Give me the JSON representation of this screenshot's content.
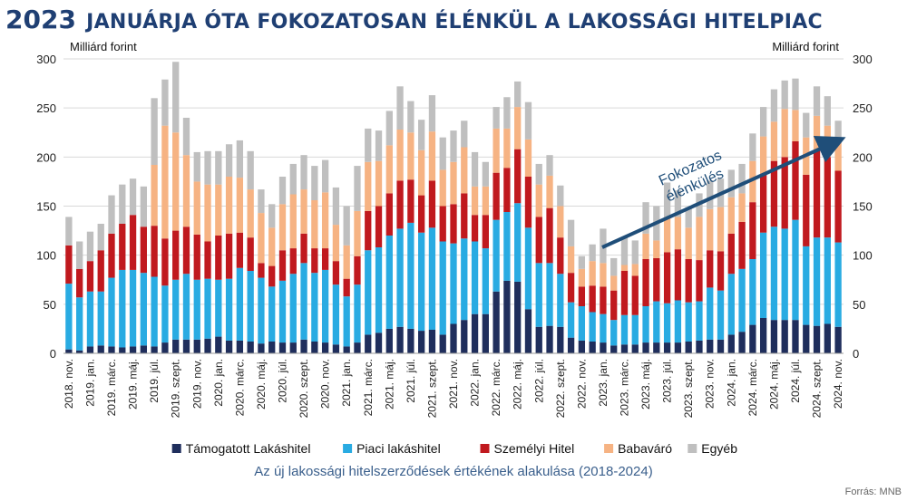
{
  "title": {
    "year": "2023",
    "rest": "JANUÁRJA ÓTA FOKOZATOSAN ÉLÉNKÜL A LAKOSSÁGI HITELPIAC"
  },
  "subtitle": "Az új lakossági hitelszerződések értékének alakulása (2018-2024)",
  "source": "Forrás: MNB",
  "annotation": [
    "Fokozatos",
    "élénkülés"
  ],
  "chart_data": {
    "type": "bar",
    "stacked": true,
    "ylabel_left": "Milliárd forint",
    "ylabel_right": "Milliárd forint",
    "ylim": [
      0,
      300
    ],
    "yticks": [
      0,
      50,
      100,
      150,
      200,
      250,
      300
    ],
    "grid": "horizontal",
    "legend_position": "bottom",
    "categories": [
      "2018. nov.",
      "2018. dec.",
      "2019. jan.",
      "2019. febr.",
      "2019. márc.",
      "2019. ápr.",
      "2019. máj.",
      "2019. jún.",
      "2019. júl.",
      "2019. aug.",
      "2019. szept.",
      "2019. okt.",
      "2019. nov.",
      "2019. dec.",
      "2020. jan.",
      "2020. febr.",
      "2020. márc.",
      "2020. ápr.",
      "2020. máj.",
      "2020. jún.",
      "2020. júl.",
      "2020. aug.",
      "2020. szept.",
      "2020. okt.",
      "2020. nov.",
      "2020. dec.",
      "2021. jan.",
      "2021. febr.",
      "2021. márc.",
      "2021. ápr.",
      "2021. máj.",
      "2021. jún.",
      "2021. júl.",
      "2021. aug.",
      "2021. szept.",
      "2021. okt.",
      "2021. nov.",
      "2021. dec.",
      "2022. jan.",
      "2022. febr.",
      "2022. márc.",
      "2022. ápr.",
      "2022. máj.",
      "2022. jún.",
      "2022. júl.",
      "2022. aug.",
      "2022. szept.",
      "2022. okt.",
      "2022. nov.",
      "2022. dec.",
      "2023. jan.",
      "2023. febr.",
      "2023. márc.",
      "2023. ápr.",
      "2023. máj.",
      "2023. jún.",
      "2023. júl.",
      "2023. aug.",
      "2023. szept.",
      "2023. okt.",
      "2023. nov.",
      "2023. dec.",
      "2024. jan.",
      "2024. febr.",
      "2024. márc.",
      "2024. ápr.",
      "2024. máj.",
      "2024. jún.",
      "2024. júl.",
      "2024. aug.",
      "2024. szept.",
      "2024. okt.",
      "2024. nov."
    ],
    "tick_labels": [
      "2018. nov.",
      "2019. jan.",
      "2019. márc.",
      "2019. máj.",
      "2019. júl.",
      "2019. szept.",
      "2019. nov.",
      "2020. jan.",
      "2020. márc.",
      "2020. máj.",
      "2020. júl.",
      "2020. szept.",
      "2020. nov.",
      "2021. jan.",
      "2021. márc.",
      "2021. máj.",
      "2021. júl.",
      "2021. szept.",
      "2021. nov.",
      "2022. jan.",
      "2022. márc.",
      "2022. máj.",
      "2022. júl.",
      "2022. szept.",
      "2022. nov.",
      "2023. jan.",
      "2023. márc.",
      "2023. máj.",
      "2023. júl.",
      "2023. szept.",
      "2023. nov.",
      "2024. jan.",
      "2024. márc.",
      "2024. máj.",
      "2024. júl.",
      "2024. szept.",
      "2024. nov."
    ],
    "series": [
      {
        "name": "Támogatott Lakáshitel",
        "color": "#1f2e5c",
        "values": [
          4,
          3,
          7,
          8,
          7,
          6,
          7,
          8,
          7,
          11,
          14,
          14,
          14,
          15,
          17,
          13,
          13,
          12,
          10,
          12,
          11,
          11,
          14,
          12,
          11,
          9,
          7,
          11,
          19,
          21,
          25,
          27,
          25,
          23,
          24,
          19,
          30,
          34,
          40,
          40,
          63,
          74,
          73,
          45,
          27,
          28,
          27,
          16,
          13,
          12,
          11,
          8,
          9,
          9,
          11,
          11,
          11,
          11,
          12,
          13,
          14,
          14,
          19,
          22,
          29,
          36,
          34,
          34,
          34,
          29,
          28,
          30,
          27
        ]
      },
      {
        "name": "Piaci lakáshitel",
        "color": "#29abe2",
        "values": [
          67,
          54,
          56,
          55,
          70,
          79,
          78,
          74,
          71,
          58,
          61,
          67,
          61,
          61,
          58,
          63,
          74,
          72,
          67,
          56,
          63,
          70,
          78,
          70,
          74,
          61,
          51,
          59,
          86,
          87,
          95,
          100,
          108,
          100,
          104,
          95,
          82,
          83,
          74,
          67,
          73,
          70,
          80,
          83,
          65,
          64,
          54,
          36,
          35,
          30,
          29,
          26,
          30,
          30,
          37,
          42,
          40,
          43,
          40,
          40,
          53,
          50,
          62,
          64,
          67,
          87,
          95,
          93,
          102,
          80,
          90,
          88,
          86
        ]
      },
      {
        "name": "Személyi Hitel",
        "color": "#c0191e",
        "values": [
          39,
          29,
          31,
          42,
          45,
          47,
          56,
          47,
          52,
          48,
          50,
          48,
          46,
          38,
          45,
          46,
          36,
          34,
          15,
          21,
          31,
          26,
          30,
          25,
          22,
          24,
          18,
          29,
          40,
          42,
          43,
          49,
          44,
          38,
          48,
          36,
          40,
          46,
          27,
          34,
          48,
          45,
          55,
          52,
          47,
          56,
          37,
          30,
          20,
          27,
          28,
          30,
          45,
          40,
          48,
          44,
          52,
          52,
          44,
          42,
          38,
          40,
          41,
          48,
          58,
          60,
          67,
          73,
          80,
          73,
          89,
          82,
          73
        ]
      },
      {
        "name": "Babaváró",
        "color": "#f6b383",
        "values": [
          0,
          0,
          0,
          0,
          0,
          0,
          0,
          0,
          62,
          115,
          100,
          73,
          54,
          58,
          52,
          58,
          56,
          49,
          51,
          39,
          47,
          55,
          45,
          49,
          57,
          37,
          34,
          46,
          50,
          46,
          49,
          52,
          48,
          46,
          50,
          37,
          43,
          47,
          29,
          29,
          45,
          40,
          43,
          38,
          33,
          33,
          32,
          27,
          18,
          25,
          24,
          15,
          6,
          12,
          26,
          18,
          36,
          33,
          32,
          44,
          42,
          45,
          37,
          29,
          42,
          38,
          40,
          49,
          32,
          38,
          35,
          32,
          30
        ]
      },
      {
        "name": "Egyéb",
        "color": "#bfbfbf",
        "values": [
          29,
          28,
          30,
          27,
          39,
          40,
          37,
          41,
          68,
          47,
          72,
          38,
          30,
          34,
          34,
          33,
          38,
          39,
          24,
          24,
          28,
          31,
          35,
          35,
          33,
          38,
          40,
          46,
          34,
          31,
          35,
          44,
          32,
          31,
          37,
          33,
          32,
          27,
          35,
          25,
          22,
          32,
          26,
          38,
          21,
          21,
          21,
          27,
          13,
          17,
          35,
          18,
          28,
          24,
          32,
          35,
          35,
          27,
          21,
          24,
          29,
          29,
          28,
          30,
          28,
          30,
          33,
          29,
          32,
          25,
          30,
          30,
          21
        ]
      }
    ]
  }
}
